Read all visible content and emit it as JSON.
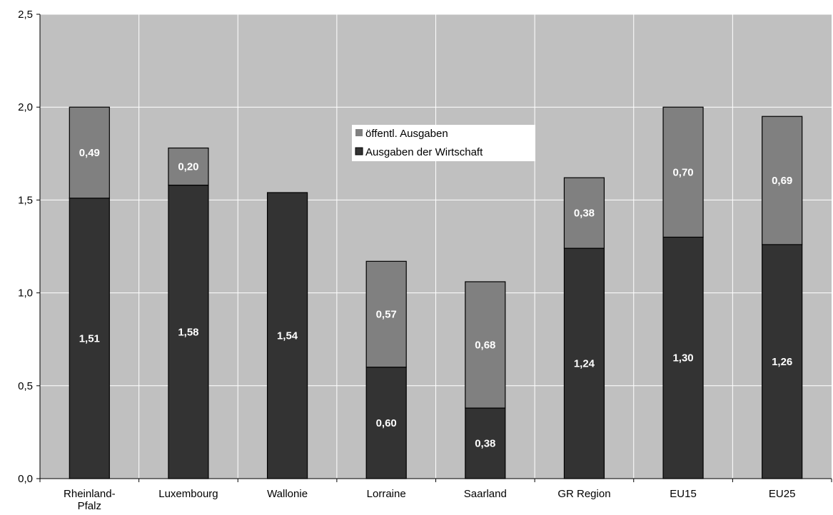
{
  "chart_data": {
    "type": "bar",
    "stacked": true,
    "categories": [
      [
        "Rheinland-",
        "Pfalz"
      ],
      [
        "Luxembourg"
      ],
      [
        "Wallonie"
      ],
      [
        "Lorraine"
      ],
      [
        "Saarland"
      ],
      [
        "GR Region"
      ],
      [
        "EU15"
      ],
      [
        "EU25"
      ]
    ],
    "series": [
      {
        "name": "Ausgaben der Wirtschaft",
        "color": "#333333",
        "values": [
          1.51,
          1.58,
          1.54,
          0.6,
          0.38,
          1.24,
          1.3,
          1.26
        ],
        "labels": [
          "1,51",
          "1,58",
          "1,54",
          "0,60",
          "0,38",
          "1,24",
          "1,30",
          "1,26"
        ]
      },
      {
        "name": "öffentl. Ausgaben",
        "color": "#808080",
        "values": [
          0.49,
          0.2,
          0,
          0.57,
          0.68,
          0.38,
          0.7,
          0.69
        ],
        "labels": [
          "0,49",
          "0,20",
          "",
          "0,57",
          "0,68",
          "0,38",
          "0,70",
          "0,69"
        ]
      }
    ],
    "ylim": [
      0,
      2.5
    ],
    "yticks": [
      0,
      0.5,
      1.0,
      1.5,
      2.0,
      2.5
    ],
    "ytick_labels": [
      "0,0",
      "0,5",
      "1,0",
      "1,5",
      "2,0",
      "2,5"
    ],
    "grid": true,
    "plot_background": "#c0c0c0",
    "legend_position": "upper-center",
    "legend": [
      {
        "label": "öffentl. Ausgaben",
        "color": "#808080"
      },
      {
        "label": "Ausgaben der Wirtschaft",
        "color": "#333333"
      }
    ]
  }
}
